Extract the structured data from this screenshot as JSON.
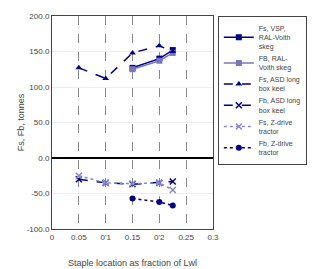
{
  "chart_data": {
    "type": "line",
    "xlabel": "Staple location as fraction of Lwl",
    "ylabel": "Fs, Fb, tonnes",
    "xlim": [
      0,
      0.3
    ],
    "ylim": [
      -100.0,
      200.0
    ],
    "xticks": [
      0,
      0.05,
      {
        "value": 0.1,
        "label": "0'1"
      },
      0.15,
      {
        "value": 0.2,
        "label": "0'2"
      },
      0.25,
      0.3
    ],
    "yticks": [
      {
        "value": -100.0,
        "label": "-100.0"
      },
      {
        "value": -50.0,
        "label": "-50.0"
      },
      {
        "value": 0.0,
        "label": "0.0"
      },
      {
        "value": 50.0,
        "label": "50.0"
      },
      {
        "value": 100.0,
        "label": "100.0"
      },
      {
        "value": 150.0,
        "label": "150.0"
      },
      {
        "value": 200.0,
        "label": "200.0"
      }
    ],
    "grid": true,
    "legend": "right",
    "series": [
      {
        "name": "Fs, VSP,\nRAL-Voith\nskeg",
        "color": "#00008B",
        "marker": "square",
        "line_style": "solid",
        "x": [
          0.15,
          0.2,
          0.225
        ],
        "values": [
          127.0,
          140.0,
          152.0
        ]
      },
      {
        "name": "FB, RAL-\nVoith skeg",
        "color": "#7777BB",
        "marker": "square",
        "line_style": "solid",
        "x": [
          0.15,
          0.2,
          0.225
        ],
        "values": [
          125.0,
          137.0,
          148.0
        ]
      },
      {
        "name": "Fs, ASD long\nbox keel",
        "color": "#00008B",
        "marker": "triangle-up",
        "line_style": "dashed",
        "x": [
          0.05,
          0.1,
          0.15,
          0.2,
          0.225
        ],
        "values": [
          127.0,
          112.0,
          148.0,
          158.0,
          150.0
        ]
      },
      {
        "name": "Fb, ASD long\nbox keel",
        "color": "#00008B",
        "marker": "x",
        "line_style": "dashed",
        "x": [
          0.05,
          0.1,
          0.15,
          0.2,
          0.225
        ],
        "values": [
          -30.0,
          -35.0,
          -37.0,
          -35.0,
          -33.0
        ]
      },
      {
        "name": "Fs, Z-drive\ntractor",
        "color": "#8888CC",
        "marker": "x",
        "line_style": "dotted",
        "x": [
          0.05,
          0.1,
          0.15,
          0.2,
          0.225
        ],
        "values": [
          -25.0,
          -35.0,
          -36.0,
          -35.0,
          -45.0
        ]
      },
      {
        "name": "Fb, Z-drive\ntractor",
        "color": "#00008B",
        "marker": "circle",
        "line_style": "dotted",
        "x": [
          0.15,
          0.2,
          0.225
        ],
        "values": [
          -57.0,
          -62.0,
          -67.0
        ]
      }
    ]
  }
}
